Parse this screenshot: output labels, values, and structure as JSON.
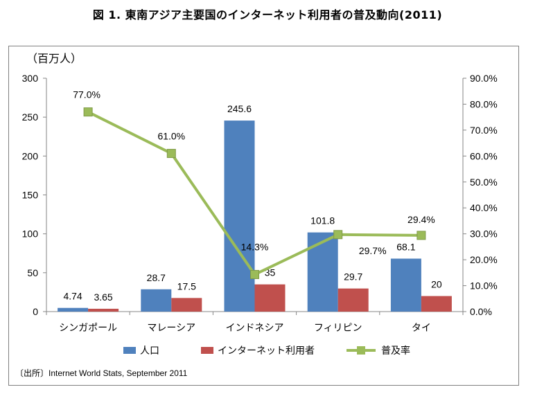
{
  "title": "図 1. 東南アジア主要国のインターネット利用者の普及動向(2011)",
  "source": "〔出所〕Internet World Stats, September 2011",
  "chart_data": {
    "type": "bar",
    "title": "図 1. 東南アジア主要国のインターネット利用者の普及動向(2011)",
    "ylabel": "（百万人）",
    "xlabel": "",
    "ylim": [
      0,
      300
    ],
    "y_ticks": [
      "0",
      "50",
      "100",
      "150",
      "200",
      "250",
      "300"
    ],
    "y2lim": [
      0,
      90
    ],
    "y2_ticks": [
      "0.0%",
      "10.0%",
      "20.0%",
      "30.0%",
      "40.0%",
      "50.0%",
      "60.0%",
      "70.0%",
      "80.0%",
      "90.0%"
    ],
    "categories": [
      "シンガポール",
      "マレーシア",
      "インドネシア",
      "フィリピン",
      "タイ"
    ],
    "series": [
      {
        "name": "人口",
        "type": "bar",
        "axis": "left",
        "color": "#4f81bd",
        "values": [
          4.74,
          28.7,
          245.6,
          101.8,
          68.1
        ],
        "labels": [
          "4.74",
          "28.7",
          "245.6",
          "101.8",
          "68.1"
        ]
      },
      {
        "name": "インターネット利用者",
        "type": "bar",
        "axis": "left",
        "color": "#c0504d",
        "values": [
          3.65,
          17.5,
          35,
          29.7,
          20
        ],
        "labels": [
          "3.65",
          "17.5",
          "35",
          "29.7",
          "20"
        ]
      },
      {
        "name": "普及率",
        "type": "line",
        "axis": "right",
        "color": "#9bbb59",
        "values": [
          77.0,
          61.0,
          14.3,
          29.7,
          29.4
        ],
        "labels": [
          "77.0%",
          "61.0%",
          "14.3%",
          "29.7%",
          "29.4%"
        ]
      }
    ],
    "grid": false,
    "legend": "bottom"
  }
}
